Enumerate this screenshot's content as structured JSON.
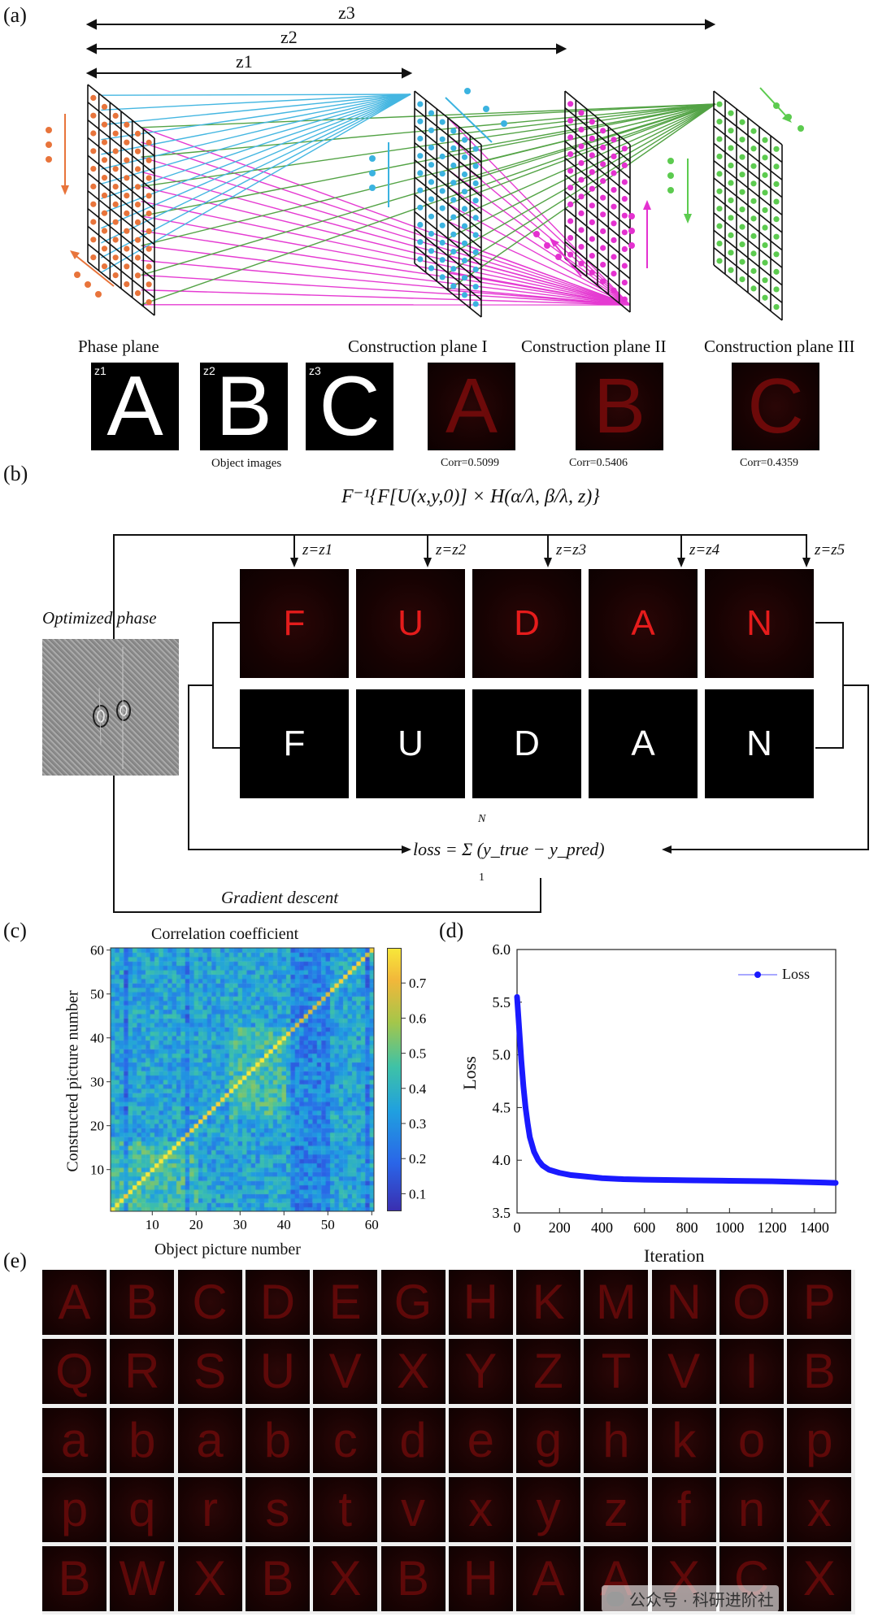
{
  "panel_labels": [
    "(a)",
    "(b)",
    "(c)",
    "(d)",
    "(e)"
  ],
  "a": {
    "distances": [
      "z3",
      "z2",
      "z1"
    ],
    "plane_titles": [
      "Phase plane",
      "Construction plane I",
      "Construction plane II",
      "Construction plane III"
    ],
    "object_tags": [
      "z1",
      "z2",
      "z3"
    ],
    "object_letters": [
      "A",
      "B",
      "C"
    ],
    "object_caption": "Object images",
    "constructed_letters": [
      "A",
      "B",
      "C"
    ],
    "corr": [
      "Corr=0.5099",
      "Corr=0.5406",
      "Corr=0.4359"
    ],
    "colors": {
      "phase": "#e8743b",
      "plane1": "#3bb3e0",
      "plane2": "#e431d0",
      "plane3": "#5ccb4f",
      "grid": "#111111"
    }
  },
  "b": {
    "formula": "F⁻¹{F[U(x,y,0)] × H(α/λ, β/λ, z)}",
    "z_labels": [
      "z=z1",
      "z=z2",
      "z=z3",
      "z=z4",
      "z=z5"
    ],
    "letters": [
      "F",
      "U",
      "D",
      "A",
      "N"
    ],
    "optimized_phase": "Optimized phase",
    "loss_formula": "loss = Σ (y_true − y_pred)",
    "loss_sum_top": "N",
    "loss_sum_bottom": "1",
    "gradient_descent": "Gradient descent"
  },
  "c": {
    "title": "Correlation coefficient",
    "xlabel": "Object picture number",
    "ylabel": "Constructed picture number",
    "x_ticks": [
      "10",
      "20",
      "30",
      "40",
      "50",
      "60"
    ],
    "y_ticks": [
      "10",
      "20",
      "30",
      "40",
      "50",
      "60"
    ],
    "colorbar_ticks": [
      "0.7",
      "0.6",
      "0.5",
      "0.4",
      "0.3",
      "0.2",
      "0.1"
    ]
  },
  "chart_data": {
    "type": "line",
    "xlabel": "Iteration",
    "ylabel": "Loss",
    "xlim": [
      0,
      1500
    ],
    "ylim": [
      3.5,
      6.0
    ],
    "x_ticks": [
      "0",
      "200",
      "400",
      "600",
      "800",
      "1000",
      "1200",
      "1400"
    ],
    "y_ticks": [
      "3.5",
      "4.0",
      "4.5",
      "5.0",
      "5.5",
      "6.0"
    ],
    "legend": "top-right",
    "series": [
      {
        "name": "Loss",
        "color": "#1a1aff",
        "x": [
          0,
          10,
          20,
          30,
          40,
          50,
          60,
          80,
          100,
          120,
          150,
          200,
          250,
          300,
          400,
          500,
          600,
          800,
          1000,
          1200,
          1400,
          1500
        ],
        "y": [
          5.55,
          5.25,
          4.95,
          4.7,
          4.5,
          4.35,
          4.22,
          4.08,
          4.0,
          3.95,
          3.91,
          3.88,
          3.86,
          3.85,
          3.83,
          3.82,
          3.815,
          3.81,
          3.805,
          3.8,
          3.79,
          3.785
        ]
      }
    ]
  },
  "e": {
    "rows": [
      [
        "A",
        "B",
        "C",
        "D",
        "E",
        "G",
        "H",
        "K",
        "M",
        "N",
        "O",
        "P"
      ],
      [
        "Q",
        "R",
        "S",
        "U",
        "V",
        "X",
        "Y",
        "Z",
        "T",
        "V",
        "I",
        "B"
      ],
      [
        "a",
        "b",
        "a",
        "b",
        "c",
        "d",
        "e",
        "g",
        "h",
        "k",
        "o",
        "p"
      ],
      [
        "p",
        "q",
        "r",
        "s",
        "t",
        "v",
        "x",
        "y",
        "z",
        "f",
        "n",
        "x"
      ],
      [
        "B",
        "W",
        "X",
        "B",
        "X",
        "B",
        "H",
        "A",
        "A",
        "X",
        "C",
        "X"
      ]
    ]
  },
  "watermark": "公众号 · 科研进阶社"
}
